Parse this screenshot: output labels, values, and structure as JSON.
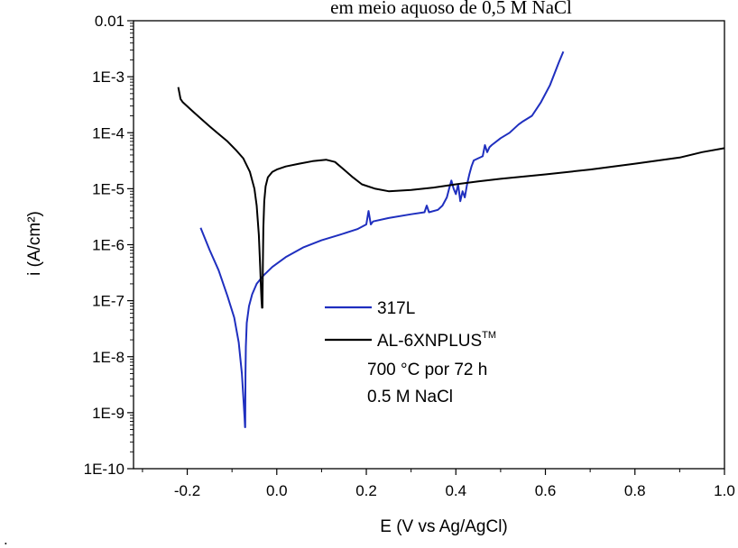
{
  "chart_data": {
    "type": "line",
    "title": "em meio aquoso de 0,5 M NaCl",
    "xlabel": "E (V vs Ag/AgCl)",
    "ylabel": "i (A/cm²)",
    "xlim": [
      -0.32,
      1.0
    ],
    "ylim": [
      1e-10,
      0.01
    ],
    "yscale": "log",
    "x_ticks": [
      -0.2,
      0.0,
      0.2,
      0.4,
      0.6,
      0.8,
      1.0
    ],
    "x_tick_labels": [
      "-0.2",
      "0.0",
      "0.2",
      "0.4",
      "0.6",
      "0.8",
      "1.0"
    ],
    "y_ticks": [
      1e-10,
      1e-09,
      1e-08,
      1e-07,
      1e-06,
      1e-05,
      0.0001,
      0.001,
      0.01
    ],
    "y_tick_labels": [
      "1E-10",
      "1E-9",
      "1E-8",
      "1E-7",
      "1E-6",
      "1E-5",
      "1E-4",
      "1E-3",
      "0.01"
    ],
    "grid": false,
    "legend_position": "center",
    "series": [
      {
        "name": "317L",
        "color": "#1f2fbf",
        "x": [
          -0.17,
          -0.15,
          -0.13,
          -0.11,
          -0.095,
          -0.085,
          -0.078,
          -0.074,
          -0.072,
          -0.071,
          -0.0705,
          -0.07,
          -0.069,
          -0.067,
          -0.062,
          -0.055,
          -0.045,
          -0.03,
          -0.01,
          0.02,
          0.06,
          0.1,
          0.14,
          0.18,
          0.2,
          0.205,
          0.21,
          0.215,
          0.25,
          0.3,
          0.33,
          0.335,
          0.34,
          0.36,
          0.37,
          0.38,
          0.385,
          0.39,
          0.395,
          0.4,
          0.405,
          0.41,
          0.415,
          0.42,
          0.425,
          0.43,
          0.435,
          0.44,
          0.45,
          0.46,
          0.465,
          0.47,
          0.475,
          0.48,
          0.5,
          0.52,
          0.54,
          0.55,
          0.57,
          0.59,
          0.61,
          0.63,
          0.64
        ],
        "y": [
          2e-06,
          8e-07,
          3.5e-07,
          1.2e-07,
          5e-08,
          1.8e-08,
          5e-09,
          1.5e-09,
          8e-10,
          5.5e-10,
          5.5e-10,
          5e-09,
          1.5e-08,
          4e-08,
          8e-08,
          1.3e-07,
          2e-07,
          2.8e-07,
          4e-07,
          6e-07,
          9e-07,
          1.2e-06,
          1.5e-06,
          1.9e-06,
          2.3e-06,
          4e-06,
          2.3e-06,
          2.6e-06,
          3e-06,
          3.5e-06,
          3.8e-06,
          5e-06,
          3.8e-06,
          4.2e-06,
          5e-06,
          7e-06,
          1e-05,
          1.4e-05,
          1e-05,
          8e-06,
          1.2e-05,
          6e-06,
          9e-06,
          7e-06,
          1.2e-05,
          1.8e-05,
          2.5e-05,
          3.2e-05,
          3.5e-05,
          3.8e-05,
          6e-05,
          4.5e-05,
          5.5e-05,
          6e-05,
          8e-05,
          0.0001,
          0.00014,
          0.00016,
          0.0002,
          0.00035,
          0.0007,
          0.0018,
          0.0028
        ]
      },
      {
        "name": "AL-6XNPLUS",
        "name_sup": "TM",
        "color": "#000000",
        "x": [
          -0.22,
          -0.215,
          -0.21,
          -0.19,
          -0.17,
          -0.15,
          -0.13,
          -0.11,
          -0.09,
          -0.075,
          -0.06,
          -0.05,
          -0.045,
          -0.04,
          -0.037,
          -0.035,
          -0.034,
          -0.033,
          -0.032,
          -0.031,
          -0.03,
          -0.028,
          -0.025,
          -0.02,
          -0.01,
          0.0,
          0.02,
          0.05,
          0.08,
          0.11,
          0.13,
          0.15,
          0.17,
          0.19,
          0.22,
          0.25,
          0.3,
          0.35,
          0.4,
          0.45,
          0.5,
          0.6,
          0.7,
          0.8,
          0.9,
          0.95,
          1.0
        ],
        "y": [
          0.00065,
          0.0004,
          0.00035,
          0.00025,
          0.00018,
          0.00013,
          9.5e-05,
          7e-05,
          4.8e-05,
          3.5e-05,
          2e-05,
          1e-05,
          5e-06,
          1.5e-06,
          4e-07,
          1.5e-07,
          1e-07,
          7.5e-08,
          7.5e-08,
          5e-07,
          2e-06,
          6e-06,
          1.1e-05,
          1.6e-05,
          2e-05,
          2.2e-05,
          2.5e-05,
          2.8e-05,
          3.1e-05,
          3.3e-05,
          3e-05,
          2.2e-05,
          1.6e-05,
          1.2e-05,
          1e-05,
          9e-06,
          9.5e-06,
          1.05e-05,
          1.2e-05,
          1.35e-05,
          1.5e-05,
          1.8e-05,
          2.2e-05,
          2.8e-05,
          3.6e-05,
          4.5e-05,
          5.3e-05
        ]
      }
    ],
    "annotations": [
      "700 °C por 72 h",
      "0.5 M NaCl"
    ],
    "footnote": "."
  }
}
